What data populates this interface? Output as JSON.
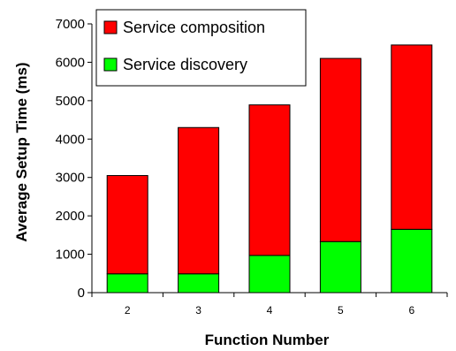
{
  "chart_data": {
    "type": "bar",
    "stacked": true,
    "categories": [
      "2",
      "3",
      "4",
      "5",
      "6"
    ],
    "series": [
      {
        "name": "Service discovery",
        "color": "#00ff00",
        "values": [
          490,
          490,
          970,
          1330,
          1650
        ]
      },
      {
        "name": "Service composition",
        "color": "#ff0000",
        "values": [
          2560,
          3810,
          3920,
          4770,
          4800
        ]
      }
    ],
    "xlabel": "Function Number",
    "ylabel": "Average Setup Time (ms)",
    "ylim": [
      0,
      7000
    ],
    "yticks": [
      0,
      1000,
      2000,
      3000,
      4000,
      5000,
      6000,
      7000
    ],
    "grid": false,
    "legend_position": "top-left",
    "legend_order": [
      "Service composition",
      "Service discovery"
    ]
  }
}
